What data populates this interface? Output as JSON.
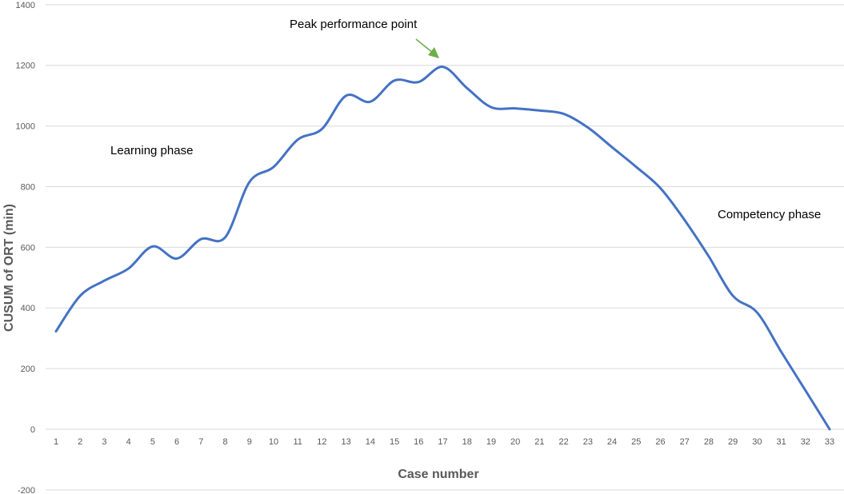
{
  "chart_data": {
    "type": "line",
    "xlabel": "Case number",
    "ylabel": "CUSUM of ORT (min)",
    "ylim": [
      -200,
      1400
    ],
    "yticks": [
      -200,
      0,
      200,
      400,
      600,
      800,
      1000,
      1200,
      1400
    ],
    "grid": true,
    "x": [
      1,
      2,
      3,
      4,
      5,
      6,
      7,
      8,
      9,
      10,
      11,
      12,
      13,
      14,
      15,
      16,
      17,
      18,
      19,
      20,
      21,
      22,
      23,
      24,
      25,
      26,
      27,
      28,
      29,
      30,
      31,
      32,
      33
    ],
    "series": [
      {
        "color": "#4472c4",
        "values": [
          323,
          440,
          490,
          530,
          603,
          563,
          627,
          633,
          815,
          865,
          955,
          990,
          1100,
          1080,
          1150,
          1145,
          1195,
          1125,
          1062,
          1058,
          1051,
          1040,
          995,
          930,
          865,
          795,
          690,
          570,
          440,
          385,
          255,
          128,
          0
        ]
      }
    ],
    "annotations": [
      {
        "text": "Learning phase"
      },
      {
        "text": "Peak performance point"
      },
      {
        "text": "Competency phase"
      }
    ],
    "arrow_color": "#70ad47"
  }
}
